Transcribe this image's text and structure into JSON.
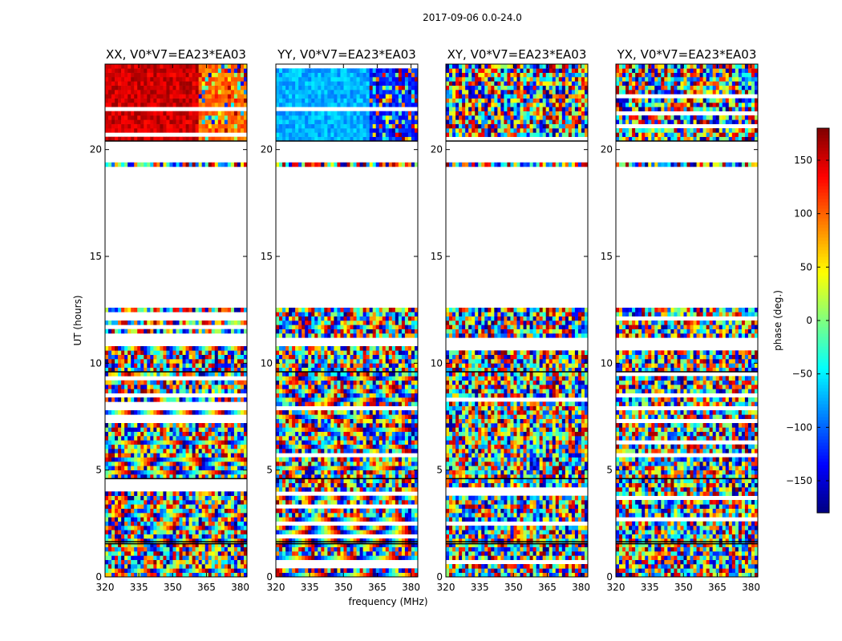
{
  "suptitle": "2017-09-06 0.0-24.0",
  "chart_data": {
    "type": "heatmap",
    "suptitle": "2017-09-06 0.0-24.0",
    "panels": [
      {
        "title": "XX, V0*V7=EA23*EA03",
        "coherent": true,
        "hue_top": 0.92
      },
      {
        "title": "YY, V0*V7=EA23*EA03",
        "coherent": true,
        "hue_top": 0.3
      },
      {
        "title": "XY, V0*V7=EA23*EA03",
        "coherent": false
      },
      {
        "title": "YX, V0*V7=EA23*EA03",
        "coherent": false
      }
    ],
    "xlabel": "frequency (MHz)",
    "ylabel": "UT (hours)",
    "xlim": [
      320,
      383
    ],
    "ylim": [
      0,
      24
    ],
    "xticks": [
      320,
      335,
      350,
      365,
      380
    ],
    "xtick_labels": [
      "320",
      "335",
      "350",
      "365",
      "380"
    ],
    "yticks": [
      0,
      5,
      10,
      15,
      20
    ],
    "ytick_labels": [
      "0",
      "5",
      "10",
      "15",
      "20"
    ],
    "data_gaps_hours": [
      [
        12.6,
        19.1
      ],
      [
        19.5,
        20.4
      ],
      [
        10.8,
        11.3
      ]
    ],
    "colorbar": {
      "label": "phase (deg.)",
      "range": [
        -180,
        180
      ],
      "ticks": [
        150,
        100,
        50,
        0,
        -50,
        -100,
        -150
      ],
      "tick_labels": [
        "150",
        "100",
        "50",
        "0",
        "−50",
        "−100",
        "−150"
      ],
      "colormap": "jet"
    }
  }
}
